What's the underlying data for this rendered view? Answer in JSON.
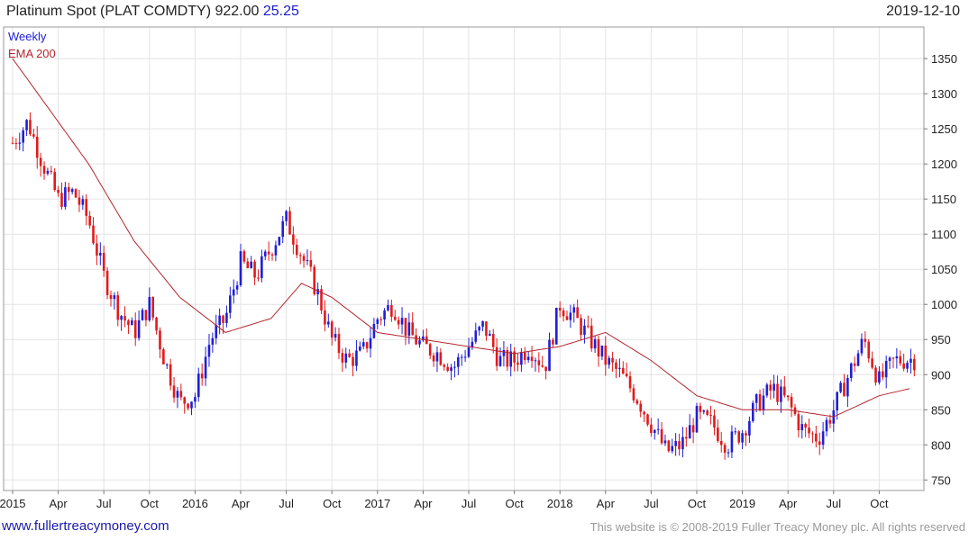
{
  "header": {
    "title": "Platinum Spot (PLAT COMDTY) 922.00",
    "change": "25.25",
    "date": "2019-12-10"
  },
  "legend": {
    "weekly": "Weekly",
    "ema": "EMA 200"
  },
  "footer": {
    "link": "www.fullertreacymoney.com",
    "copyright": "This website is © 2008-2019 Fuller Treacy Money plc. All rights reserved"
  },
  "colors": {
    "up": "#1f1fd6",
    "down": "#e01b1b",
    "ema": "#b3262e",
    "grid": "#e3e3e3"
  },
  "chart_data": {
    "type": "line",
    "title": "Platinum Spot (PLAT COMDTY) 922.00",
    "frequency": "weekly candlestick (OHLC)",
    "ylim": [
      735,
      1395
    ],
    "y_ticks": [
      750,
      800,
      850,
      900,
      950,
      1000,
      1050,
      1100,
      1150,
      1200,
      1250,
      1300,
      1350
    ],
    "x_ticks": [
      "2015",
      "Apr",
      "Jul",
      "Oct",
      "2016",
      "Apr",
      "Jul",
      "Oct",
      "2017",
      "Apr",
      "Jul",
      "Oct",
      "2018",
      "Apr",
      "Jul",
      "Oct",
      "2019",
      "Apr",
      "Jul",
      "Oct"
    ],
    "axis_position": "right",
    "grid": true,
    "series": [
      {
        "name": "Weekly",
        "kind": "candles",
        "x": [
          "2015-01",
          "2015-02",
          "2015-03",
          "2015-04",
          "2015-05",
          "2015-06",
          "2015-07",
          "2015-08",
          "2015-09",
          "2015-10",
          "2015-11",
          "2015-12",
          "2016-01",
          "2016-02",
          "2016-03",
          "2016-04",
          "2016-05",
          "2016-06",
          "2016-07",
          "2016-08",
          "2016-09",
          "2016-10",
          "2016-11",
          "2016-12",
          "2017-01",
          "2017-02",
          "2017-03",
          "2017-04",
          "2017-05",
          "2017-06",
          "2017-07",
          "2017-08",
          "2017-09",
          "2017-10",
          "2017-11",
          "2017-12",
          "2018-01",
          "2018-02",
          "2018-03",
          "2018-04",
          "2018-05",
          "2018-06",
          "2018-07",
          "2018-08",
          "2018-09",
          "2018-10",
          "2018-11",
          "2018-12",
          "2019-01",
          "2019-02",
          "2019-03",
          "2019-04",
          "2019-05",
          "2019-06",
          "2019-07",
          "2019-08",
          "2019-09",
          "2019-10",
          "2019-11",
          "2019-12"
        ],
        "values": [
          1230,
          1260,
          1200,
          1150,
          1160,
          1120,
          1040,
          990,
          960,
          1000,
          920,
          860,
          870,
          950,
          980,
          1060,
          1040,
          1080,
          1120,
          1070,
          1020,
          950,
          920,
          930,
          980,
          1000,
          960,
          940,
          930,
          910,
          940,
          970,
          920,
          920,
          940,
          910,
          1000,
          980,
          950,
          920,
          900,
          870,
          830,
          790,
          800,
          840,
          830,
          800,
          820,
          860,
          880,
          860,
          820,
          810,
          850,
          900,
          950,
          890,
          920,
          922
        ]
      },
      {
        "name": "EMA 200",
        "kind": "line",
        "x": [
          "2015-01",
          "2015-03",
          "2015-06",
          "2015-09",
          "2015-12",
          "2016-03",
          "2016-06",
          "2016-08",
          "2016-10",
          "2017-01",
          "2017-04",
          "2017-07",
          "2017-10",
          "2018-01",
          "2018-04",
          "2018-07",
          "2018-10",
          "2019-01",
          "2019-04",
          "2019-07",
          "2019-10",
          "2019-12"
        ],
        "values": [
          1350,
          1290,
          1200,
          1090,
          1010,
          960,
          980,
          1030,
          1010,
          960,
          950,
          940,
          930,
          940,
          960,
          920,
          870,
          850,
          850,
          840,
          870,
          880
        ]
      }
    ]
  }
}
